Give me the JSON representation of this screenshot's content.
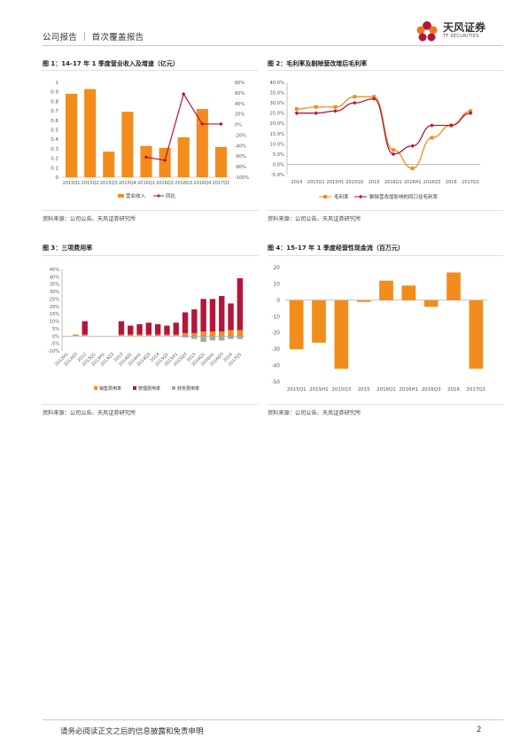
{
  "header": {
    "title": "公司报告 ｜ 首次覆盖报告"
  },
  "logo": {
    "name": "天风证券",
    "sub": "TF SECURITIES"
  },
  "colors": {
    "orange": "#f28c1d",
    "crimson": "#b5153a",
    "grey": "#a6a6a6",
    "axis": "#999999"
  },
  "footer": {
    "text": "请务必阅读正文之后的信息披露和免责申明",
    "page": "2"
  },
  "figures": [
    {
      "title": "图 1：14-17 年 1 季度营业收入及增速（亿元）",
      "source": "资料来源：公司公告、天风证券研究所"
    },
    {
      "title": "图 2：毛利率及剔除营改增后毛利率",
      "source": "资料来源：公司公告、天风证券研究所"
    },
    {
      "title": "图 3：三项费用率",
      "source": "资料来源：公司公告、天风证券研究所"
    },
    {
      "title": "图 4：15-17 年 1 季度经营性现金流（百万元）",
      "source": "资料来源：公司公告、天风证券研究所"
    }
  ],
  "chart_data": [
    {
      "type": "bar",
      "categories": [
        "2015Q1",
        "2015Q2",
        "2015Q3",
        "2015Q4",
        "2016Q1",
        "2016Q2",
        "2016Q3",
        "2016Q4",
        "2017Q1"
      ],
      "series": [
        {
          "name": "营业收入",
          "kind": "bar",
          "axis": "left",
          "values": [
            0.88,
            0.93,
            0.27,
            0.69,
            0.33,
            0.31,
            0.42,
            0.72,
            0.32
          ]
        },
        {
          "name": "同比",
          "kind": "line",
          "axis": "right",
          "values": [
            null,
            null,
            null,
            null,
            -0.62,
            -0.68,
            0.58,
            0.01,
            0.01
          ]
        }
      ],
      "ylim": [
        0,
        1
      ],
      "yticks": [
        "0",
        "0.1",
        "0.2",
        "0.3",
        "0.4",
        "0.5",
        "0.6",
        "0.7",
        "0.8",
        "0.9",
        "1"
      ],
      "y2lim": [
        -1,
        0.8
      ],
      "y2ticks": [
        "80%",
        "60%",
        "40%",
        "20%",
        "0%",
        "-20%",
        "-40%",
        "-60%",
        "-80%",
        "-100%"
      ],
      "legend": "bottom"
    },
    {
      "type": "line",
      "categories": [
        "2014",
        "2015Q1",
        "2015H1",
        "2015Q3",
        "2015",
        "2016Q1",
        "2016H1",
        "2016Q3",
        "2016",
        "2017Q1"
      ],
      "series": [
        {
          "name": "毛利率",
          "values": [
            0.27,
            0.28,
            0.28,
            0.33,
            0.33,
            0.07,
            -0.02,
            0.13,
            0.19,
            0.26
          ]
        },
        {
          "name": "剔除营改增影响的同口径毛利率",
          "values": [
            0.25,
            0.25,
            0.26,
            0.3,
            0.32,
            0.05,
            0.09,
            0.19,
            0.19,
            0.25
          ]
        }
      ],
      "ylim": [
        -0.05,
        0.4
      ],
      "yticks": [
        "40.0%",
        "35.0%",
        "30.0%",
        "25.0%",
        "20.0%",
        "15.0%",
        "10.0%",
        "5.0%",
        "0.0%",
        "-5.0%"
      ],
      "legend": "bottom"
    },
    {
      "type": "bar",
      "stacked": true,
      "categories": [
        "2012H1",
        "2012Q3",
        "2012",
        "2013Q1",
        "2013H1",
        "2013Q3",
        "2013",
        "2014Q1",
        "2014H1",
        "2014Q3",
        "2014",
        "2015Q1",
        "2015H1",
        "2015Q3",
        "2015",
        "2016Q1",
        "2016H1",
        "2016Q3",
        "2016",
        "2017Q1"
      ],
      "series": [
        {
          "name": "销售费用率",
          "values": [
            0,
            0.01,
            0.01,
            0,
            0,
            0,
            0.01,
            0.01,
            0.01,
            0.01,
            0.01,
            0.01,
            0.01,
            0.02,
            0.02,
            0.03,
            0.03,
            0.03,
            0.04,
            0.04
          ]
        },
        {
          "name": "管理费用率",
          "values": [
            0,
            0.0,
            0.09,
            0,
            0,
            0,
            0.09,
            0.06,
            0.07,
            0.08,
            0.07,
            0.06,
            0.08,
            0.14,
            0.16,
            0.22,
            0.22,
            0.24,
            0.18,
            0.35
          ]
        },
        {
          "name": "财务费用率",
          "values": [
            0,
            0,
            0,
            0,
            0,
            0,
            0,
            0,
            0,
            0,
            0,
            0,
            0,
            -0.01,
            -0.02,
            -0.04,
            -0.03,
            -0.03,
            -0.02,
            -0.02
          ]
        }
      ],
      "ylim": [
        -0.1,
        0.45
      ],
      "yticks": [
        "45%",
        "40%",
        "35%",
        "30%",
        "25%",
        "20%",
        "15%",
        "10%",
        "5%",
        "0%",
        "-5%",
        "-10%"
      ],
      "legend": "bottom"
    },
    {
      "type": "bar",
      "categories": [
        "2015Q1",
        "2015H1",
        "2015Q3",
        "2015",
        "2016Q1",
        "2016H1",
        "2016Q3",
        "2016",
        "2017Q1"
      ],
      "values": [
        -30,
        -26,
        -42,
        -1,
        12,
        9,
        -4,
        17,
        -42
      ],
      "ylim": [
        -50,
        20
      ],
      "yticks": [
        "20",
        "10",
        "0",
        "-10",
        "-20",
        "-30",
        "-40",
        "-50"
      ]
    }
  ]
}
